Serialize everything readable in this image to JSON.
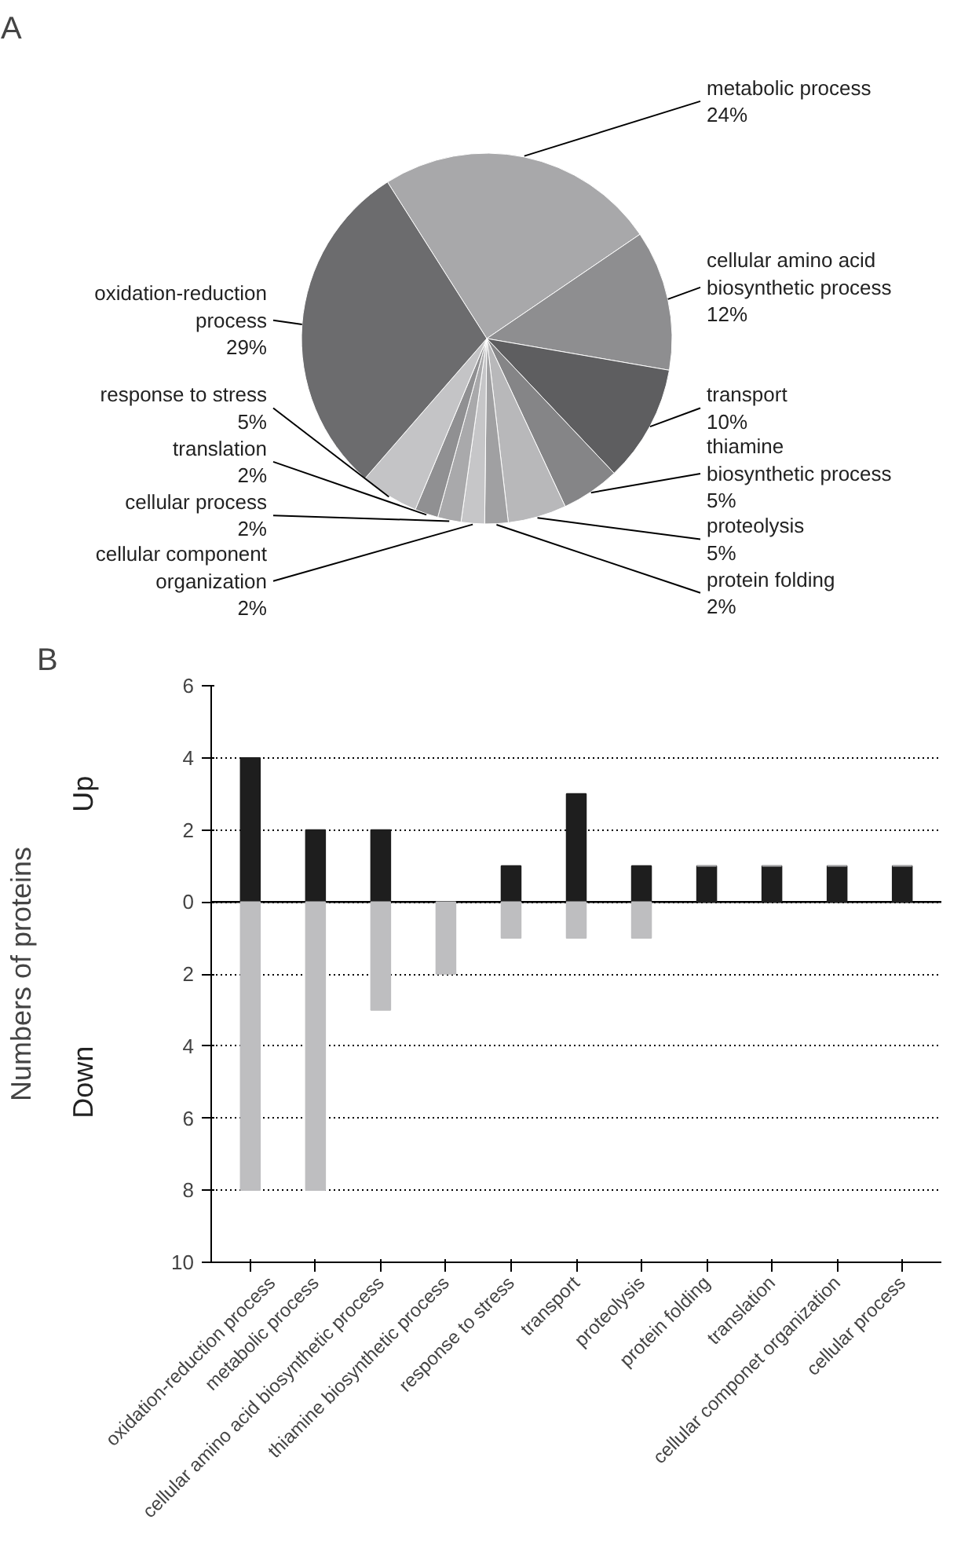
{
  "chart_data": [
    {
      "type": "pie",
      "title": "A",
      "categories": [
        "metabolic process",
        "cellular amino acid biosynthetic process",
        "transport",
        "thiamine biosynthetic process",
        "proteolysis",
        "protein folding",
        "cellular component organization",
        "cellular process",
        "translation",
        "response to stress",
        "oxidation-reduction process"
      ],
      "values": [
        24,
        12,
        10,
        5,
        5,
        2,
        2,
        2,
        2,
        5,
        29
      ],
      "value_labels": [
        "24%",
        "12%",
        "10%",
        "5%",
        "5%",
        "2%",
        "2%",
        "2%",
        "2%",
        "5%",
        "29%"
      ],
      "colors": [
        "#a8a8aa",
        "#8e8e90",
        "#5e5e60",
        "#858587",
        "#b8b8ba",
        "#a0a0a2",
        "#c6c6c8",
        "#a9a9ab",
        "#909092",
        "#c4c4c6",
        "#6c6c6e"
      ]
    },
    {
      "type": "bar",
      "title": "B",
      "ylabel": "Numbers of proteins",
      "annotations": [
        "Up",
        "Down"
      ],
      "categories": [
        "oxidation-reduction process",
        "metabolic process",
        "cellular amino acid biosynthetic process",
        "thiamine biosynthetic process",
        "response to stress",
        "transport",
        "proteolysis",
        "protein folding",
        "translation",
        "cellular componet organization",
        "cellular process"
      ],
      "series": [
        {
          "color": "#1e1e1e",
          "values": [
            4,
            2,
            2,
            0,
            1,
            3,
            1,
            1,
            1,
            1,
            1
          ]
        },
        {
          "color": "#bebec0",
          "values": [
            -8,
            -8,
            -3,
            -2,
            -1,
            -1,
            -1,
            0,
            0,
            0,
            0
          ]
        }
      ],
      "ylim": [
        -10,
        6
      ],
      "yticks": [
        6,
        4,
        2,
        0,
        {
          "value": -2,
          "label": "2"
        },
        {
          "value": -4,
          "label": "4"
        },
        {
          "value": -6,
          "label": "6"
        },
        {
          "value": -8,
          "label": "8"
        },
        {
          "value": -10,
          "label": "10"
        }
      ],
      "stacked": true,
      "ref_lines": [
        {
          "axis": "y",
          "value": 0,
          "color": "#000000",
          "line_style": "solid"
        }
      ],
      "grid": "y"
    }
  ]
}
